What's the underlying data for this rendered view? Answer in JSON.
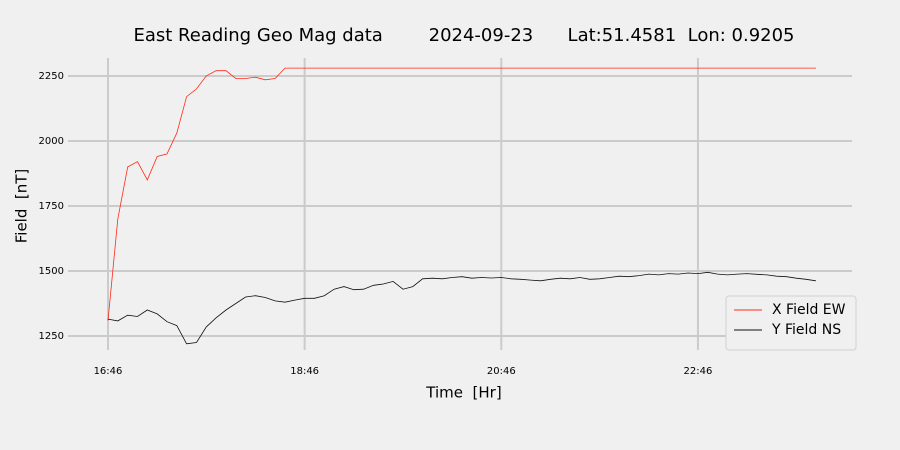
{
  "chart_data": {
    "type": "line",
    "title": "East Reading Geo Mag data        2024-09-23      Lat:51.4581  Lon: 0.9205",
    "x_label": "Time  [Hr]",
    "y_label": "Field  [nT]",
    "x": [
      1006,
      1012,
      1018,
      1024,
      1030,
      1036,
      1042,
      1048,
      1054,
      1060,
      1066,
      1072,
      1078,
      1084,
      1090,
      1096,
      1102,
      1108,
      1114,
      1120,
      1126,
      1132,
      1138,
      1144,
      1150,
      1156,
      1162,
      1168,
      1174,
      1180,
      1186,
      1192,
      1198,
      1204,
      1210,
      1216,
      1222,
      1228,
      1234,
      1240,
      1246,
      1252,
      1258,
      1264,
      1270,
      1276,
      1282,
      1288,
      1294,
      1300,
      1306,
      1312,
      1318,
      1324,
      1330,
      1336,
      1342,
      1348,
      1354,
      1360,
      1366,
      1372,
      1378,
      1384,
      1390,
      1396,
      1402,
      1408,
      1414,
      1420,
      1426,
      1432,
      1438
    ],
    "series": [
      {
        "name": "X Field EW",
        "color": "#ff2a1a",
        "values": [
          1310,
          1700,
          1900,
          1920,
          1850,
          1940,
          1950,
          2030,
          2170,
          2200,
          2250,
          2270,
          2270,
          2240,
          2240,
          2245,
          2235,
          2240,
          2280,
          2280,
          2280,
          2280,
          2280,
          2280,
          2280,
          2280,
          2280,
          2280,
          2280,
          2280,
          2280,
          2280,
          2280,
          2280,
          2280,
          2280,
          2280,
          2280,
          2280,
          2280,
          2280,
          2280,
          2280,
          2280,
          2280,
          2280,
          2280,
          2280,
          2280,
          2280,
          2280,
          2280,
          2280,
          2280,
          2280,
          2280,
          2280,
          2280,
          2280,
          2280,
          2280,
          2280,
          2280,
          2280,
          2280,
          2280,
          2280,
          2280,
          2280,
          2280,
          2280,
          2280,
          2280
        ]
      },
      {
        "name": "Y Field NS",
        "color": "#111111",
        "values": [
          1315,
          1308,
          1330,
          1325,
          1350,
          1335,
          1305,
          1290,
          1220,
          1225,
          1285,
          1320,
          1350,
          1375,
          1400,
          1405,
          1398,
          1385,
          1380,
          1388,
          1395,
          1395,
          1405,
          1430,
          1440,
          1428,
          1430,
          1445,
          1450,
          1460,
          1430,
          1440,
          1470,
          1472,
          1470,
          1475,
          1478,
          1472,
          1475,
          1473,
          1475,
          1470,
          1468,
          1465,
          1462,
          1468,
          1472,
          1470,
          1475,
          1468,
          1470,
          1475,
          1480,
          1478,
          1482,
          1488,
          1485,
          1490,
          1488,
          1492,
          1490,
          1495,
          1488,
          1485,
          1488,
          1490,
          1487,
          1485,
          1480,
          1478,
          1472,
          1468,
          1462
        ]
      }
    ],
    "xlim": [
      981.6,
      1460
    ],
    "xticks": [
      {
        "value": 1006,
        "label": "16:46"
      },
      {
        "value": 1126,
        "label": "18:46"
      },
      {
        "value": 1246,
        "label": "20:46"
      },
      {
        "value": 1366,
        "label": "22:46"
      }
    ],
    "ylim": [
      1196,
      2319
    ],
    "yticks": [
      1250,
      1500,
      1750,
      2000,
      2250
    ],
    "grid": true,
    "legend": "lower right"
  }
}
